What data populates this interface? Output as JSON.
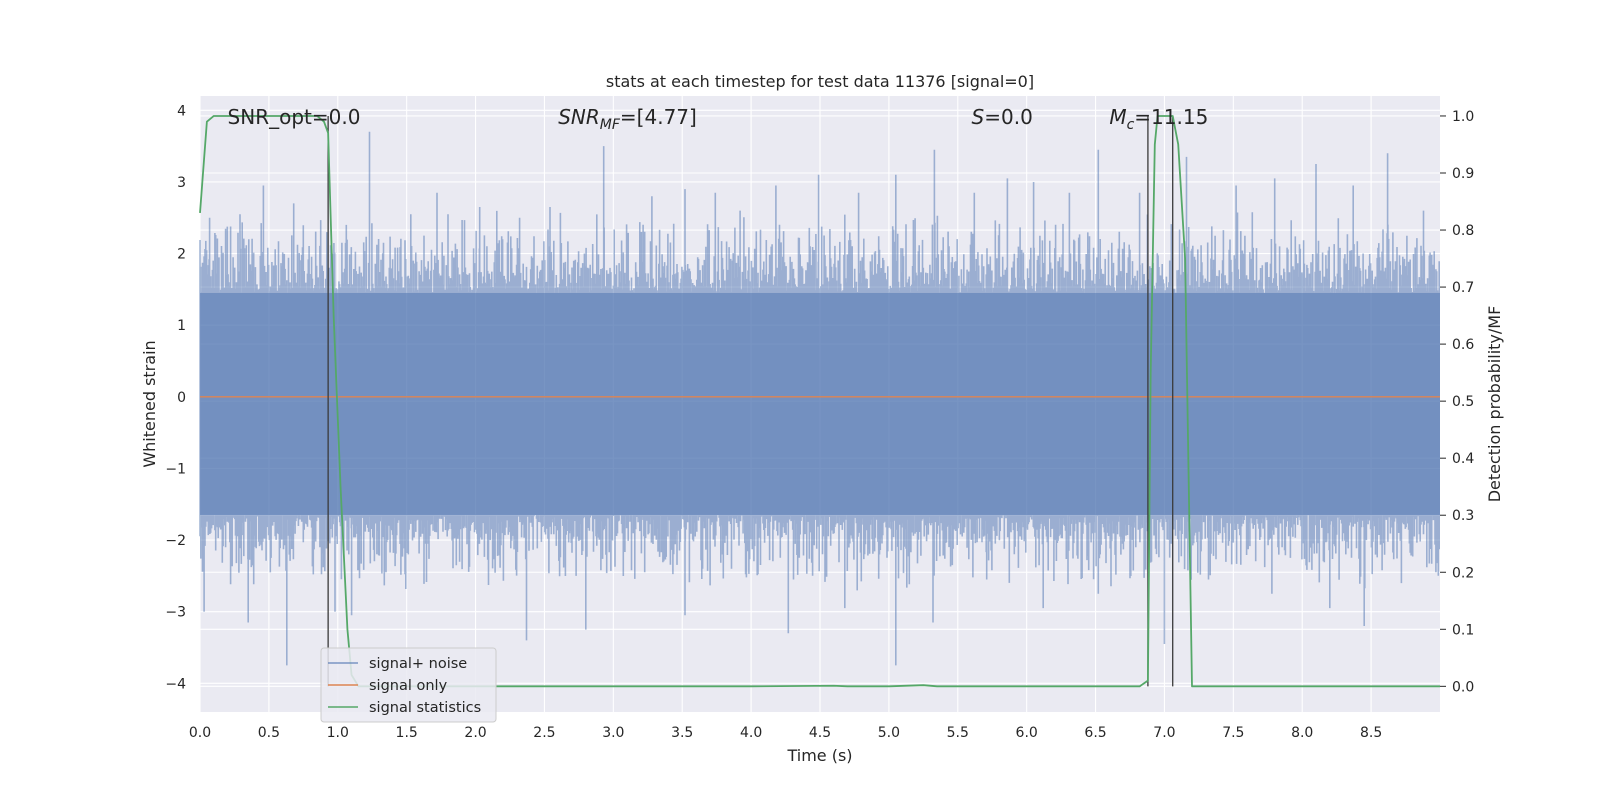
{
  "chart_data": {
    "type": "line",
    "title": "stats at each timestep for test data 11376 [signal=0]",
    "xlabel": "Time (s)",
    "ylabel_left": "Whitened strain",
    "ylabel_right": "Detection probability/MF",
    "xlim": [
      0.0,
      9.0
    ],
    "ylim_left": [
      -4.4,
      4.2
    ],
    "ylim_right": [
      -0.045,
      1.035
    ],
    "x_ticks": [
      0.0,
      0.5,
      1.0,
      1.5,
      2.0,
      2.5,
      3.0,
      3.5,
      4.0,
      4.5,
      5.0,
      5.5,
      6.0,
      6.5,
      7.0,
      7.5,
      8.0,
      8.5
    ],
    "x_tick_labels": [
      "0.0",
      "0.5",
      "1.0",
      "1.5",
      "2.0",
      "2.5",
      "3.0",
      "3.5",
      "4.0",
      "4.5",
      "5.0",
      "5.5",
      "6.0",
      "6.5",
      "7.0",
      "7.5",
      "8.0",
      "8.5"
    ],
    "y_left_ticks": [
      -4,
      -3,
      -2,
      -1,
      0,
      1,
      2,
      3,
      4
    ],
    "y_left_tick_labels": [
      "−4",
      "−3",
      "−2",
      "−1",
      "0",
      "1",
      "2",
      "3",
      "4"
    ],
    "y_right_ticks": [
      0.0,
      0.1,
      0.2,
      0.3,
      0.4,
      0.5,
      0.6,
      0.7,
      0.8,
      0.9,
      1.0
    ],
    "y_right_tick_labels": [
      "0.0",
      "0.1",
      "0.2",
      "0.3",
      "0.4",
      "0.5",
      "0.6",
      "0.7",
      "0.8",
      "0.9",
      "1.0"
    ],
    "grid": true,
    "legend_position": "lower-left",
    "annotations": [
      {
        "x": 0.2,
        "text": "SNR_opt=0.0",
        "italic": false
      },
      {
        "x": 2.6,
        "text": "SNR_MF=[4.77]",
        "italic": true
      },
      {
        "x": 5.6,
        "text": "S=0.0",
        "italic": true
      },
      {
        "x": 6.6,
        "text": "M_c=11.15",
        "italic": true
      }
    ],
    "vertical_lines": [
      0.93,
      6.88,
      7.06
    ],
    "noise": {
      "band": [
        -1.65,
        1.45
      ],
      "peaks": [
        [
          0.07,
          2.5
        ],
        [
          0.29,
          2.55
        ],
        [
          0.46,
          2.95
        ],
        [
          0.68,
          2.7
        ],
        [
          0.92,
          2.3
        ],
        [
          1.03,
          2.15
        ],
        [
          1.23,
          3.7
        ],
        [
          1.53,
          2.55
        ],
        [
          1.72,
          2.85
        ],
        [
          2.03,
          2.65
        ],
        [
          2.32,
          2.5
        ],
        [
          2.54,
          2.65
        ],
        [
          2.93,
          3.5
        ],
        [
          3.28,
          2.8
        ],
        [
          3.52,
          2.9
        ],
        [
          3.74,
          2.85
        ],
        [
          3.92,
          2.6
        ],
        [
          4.18,
          2.95
        ],
        [
          4.49,
          3.1
        ],
        [
          4.78,
          2.85
        ],
        [
          5.05,
          3.1
        ],
        [
          5.33,
          3.45
        ],
        [
          5.62,
          2.85
        ],
        [
          5.86,
          3.05
        ],
        [
          6.05,
          3.0
        ],
        [
          6.31,
          2.85
        ],
        [
          6.52,
          3.45
        ],
        [
          6.82,
          2.85
        ],
        [
          7.16,
          3.35
        ],
        [
          7.52,
          2.95
        ],
        [
          7.8,
          3.05
        ],
        [
          8.1,
          3.25
        ],
        [
          8.37,
          2.95
        ],
        [
          8.62,
          3.4
        ],
        [
          8.88,
          2.6
        ]
      ],
      "troughs": [
        [
          0.03,
          -3.0
        ],
        [
          0.35,
          -3.15
        ],
        [
          0.63,
          -3.75
        ],
        [
          0.98,
          -3.0
        ],
        [
          1.1,
          -3.05
        ],
        [
          1.35,
          -2.45
        ],
        [
          2.37,
          -3.4
        ],
        [
          2.8,
          -3.25
        ],
        [
          3.52,
          -3.05
        ],
        [
          4.27,
          -3.3
        ],
        [
          4.68,
          -2.95
        ],
        [
          5.05,
          -3.75
        ],
        [
          5.32,
          -3.15
        ],
        [
          5.71,
          -2.55
        ],
        [
          6.12,
          -2.95
        ],
        [
          6.52,
          -2.75
        ],
        [
          7.0,
          -3.45
        ],
        [
          7.32,
          -2.55
        ],
        [
          7.78,
          -2.75
        ],
        [
          8.2,
          -2.95
        ],
        [
          8.45,
          -3.2
        ],
        [
          8.72,
          -2.6
        ],
        [
          8.97,
          -2.45
        ]
      ]
    },
    "series": [
      {
        "name": "signal+ noise",
        "axis": "left",
        "color": "#4c72b0",
        "opacity": 0.5
      },
      {
        "name": "signal only",
        "axis": "left",
        "color": "#dd8452",
        "x": [
          0.0,
          9.0
        ],
        "y": [
          0.0,
          0.0
        ]
      },
      {
        "name": "signal statistics",
        "axis": "right",
        "color": "#55a868",
        "x": [
          0.0,
          0.05,
          0.1,
          0.15,
          0.2,
          0.3,
          0.5,
          0.7,
          0.85,
          0.9,
          0.93,
          0.97,
          1.02,
          1.07,
          1.1,
          1.15,
          1.5,
          2.0,
          3.0,
          4.0,
          4.6,
          4.7,
          5.0,
          5.25,
          5.35,
          5.5,
          6.0,
          6.5,
          6.82,
          6.88,
          6.9,
          6.93,
          6.95,
          7.0,
          7.04,
          7.06,
          7.1,
          7.15,
          7.2,
          7.5,
          8.0,
          8.5,
          9.0
        ],
        "y": [
          0.83,
          0.99,
          1.0,
          1.0,
          1.0,
          1.0,
          1.0,
          1.0,
          1.0,
          0.99,
          0.97,
          0.65,
          0.35,
          0.1,
          0.02,
          0.0,
          0.0,
          0.0,
          0.0,
          0.0,
          0.001,
          0.0,
          0.0,
          0.002,
          0.0,
          0.0,
          0.0,
          0.0,
          0.0,
          0.01,
          0.55,
          0.95,
          1.0,
          1.0,
          1.0,
          1.0,
          0.95,
          0.75,
          0.0,
          0.0,
          0.0,
          0.0,
          0.0
        ]
      }
    ]
  }
}
